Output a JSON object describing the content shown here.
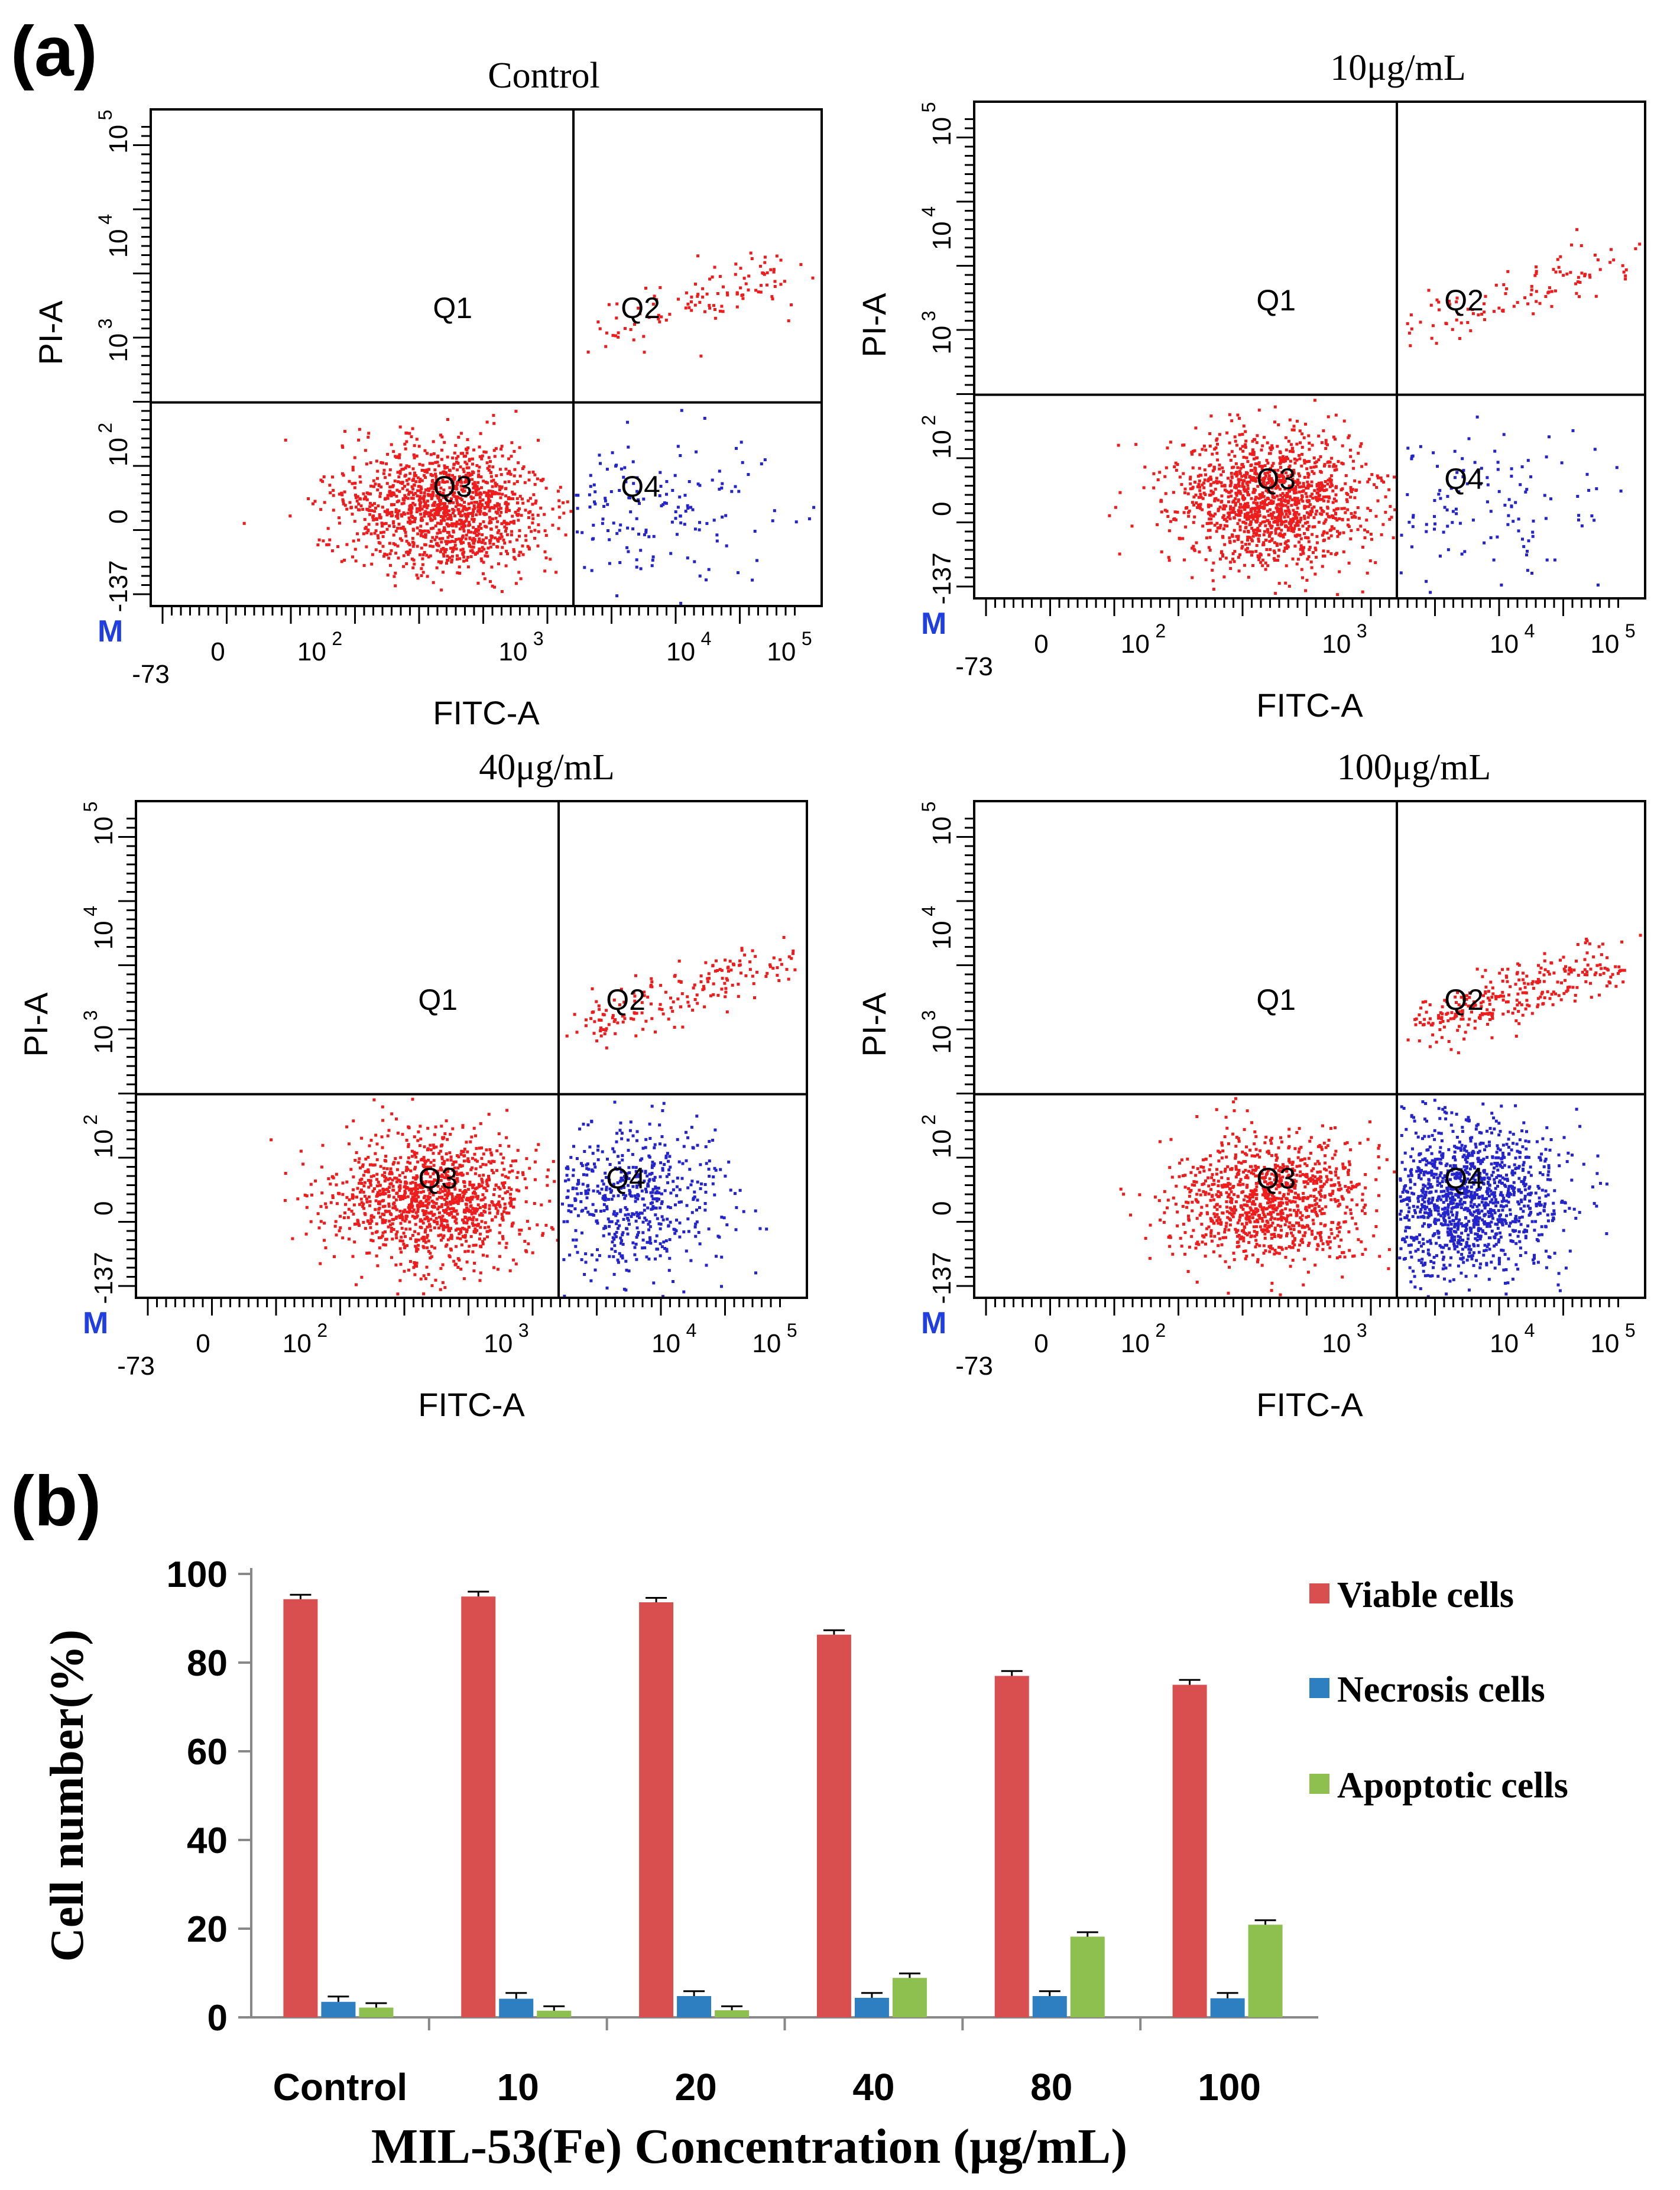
{
  "panel_a_label": "(a)",
  "panel_b_label": "(b)",
  "flow_axes": {
    "xlabel": "FITC-A",
    "ylabel": "PI-A",
    "x_ticks": [
      "-73",
      "0",
      "10",
      "10",
      "10",
      "10"
    ],
    "x_exps": [
      "",
      "",
      "2",
      "3",
      "4",
      "5"
    ],
    "y_ticks": [
      "-137",
      "0",
      "10",
      "10",
      "10",
      "10"
    ],
    "y_exps": [
      "",
      "",
      "2",
      "3",
      "4",
      "5"
    ],
    "corner_marker": "M",
    "quadrants": [
      "Q1",
      "Q2",
      "Q3",
      "Q4"
    ]
  },
  "flow_panels": [
    {
      "title": "Control",
      "viable": 94.3,
      "necrosis": 3.5,
      "apoptotic": 2.2
    },
    {
      "title": "10μg/mL",
      "viable": 94.9,
      "necrosis": 4.2,
      "apoptotic": 1.5
    },
    {
      "title": "40μg/mL",
      "viable": 86.3,
      "necrosis": 4.4,
      "apoptotic": 8.9
    },
    {
      "title": "100μg/mL",
      "viable": 75.0,
      "necrosis": 4.3,
      "apoptotic": 20.9
    }
  ],
  "colors": {
    "viable": "#d94f4f",
    "necrosis": "#2e7fc1",
    "apoptotic": "#8dc04e",
    "dot_red": "#ee1c1c",
    "dot_blue": "#2424cc",
    "marker_blue": "#1f3fe0"
  },
  "chart_data": [
    {
      "type": "scatter",
      "title": "Control",
      "xlabel": "FITC-A",
      "ylabel": "PI-A",
      "quadrants": [
        "Q1",
        "Q2",
        "Q3",
        "Q4"
      ],
      "description_values": {
        "Q2_late_apoptotic_pct": 2.2,
        "Q3_viable_pct": 94.3
      }
    },
    {
      "type": "scatter",
      "title": "10μg/mL",
      "xlabel": "FITC-A",
      "ylabel": "PI-A",
      "quadrants": [
        "Q1",
        "Q2",
        "Q3",
        "Q4"
      ],
      "description_values": {
        "Q2_late_apoptotic_pct": 1.5,
        "Q3_viable_pct": 94.9
      }
    },
    {
      "type": "scatter",
      "title": "40μg/mL",
      "xlabel": "FITC-A",
      "ylabel": "PI-A",
      "quadrants": [
        "Q1",
        "Q2",
        "Q3",
        "Q4"
      ],
      "description_values": {
        "Q4_apoptotic_pct": 8.9,
        "Q3_viable_pct": 86.3
      }
    },
    {
      "type": "scatter",
      "title": "100μg/mL",
      "xlabel": "FITC-A",
      "ylabel": "PI-A",
      "quadrants": [
        "Q1",
        "Q2",
        "Q3",
        "Q4"
      ],
      "description_values": {
        "Q4_apoptotic_pct": 20.9,
        "Q3_viable_pct": 75.0
      }
    },
    {
      "type": "bar",
      "title": "",
      "xlabel": "MIL-53(Fe) Concentration (μg/mL)",
      "ylabel": "Cell number(%)",
      "ylim": [
        0,
        100
      ],
      "yticks": [
        0,
        20,
        40,
        60,
        80,
        100
      ],
      "categories": [
        "Control",
        "10",
        "20",
        "40",
        "80",
        "100"
      ],
      "series": [
        {
          "name": "Viable cells",
          "values": [
            94.3,
            94.9,
            93.6,
            86.3,
            77.0,
            75.0
          ],
          "errors": [
            1.0,
            1.1,
            1.0,
            1.0,
            1.1,
            1.1
          ]
        },
        {
          "name": "Necrosis cells",
          "values": [
            3.5,
            4.2,
            4.8,
            4.4,
            4.8,
            4.3
          ],
          "errors": [
            1.2,
            1.3,
            1.1,
            1.1,
            1.1,
            1.2
          ]
        },
        {
          "name": "Apoptotic cells",
          "values": [
            2.2,
            1.5,
            1.6,
            8.9,
            18.2,
            20.9
          ],
          "errors": [
            1.0,
            1.0,
            0.9,
            1.0,
            1.0,
            1.0
          ]
        }
      ],
      "legend_position": "right",
      "error_bars": true
    }
  ]
}
